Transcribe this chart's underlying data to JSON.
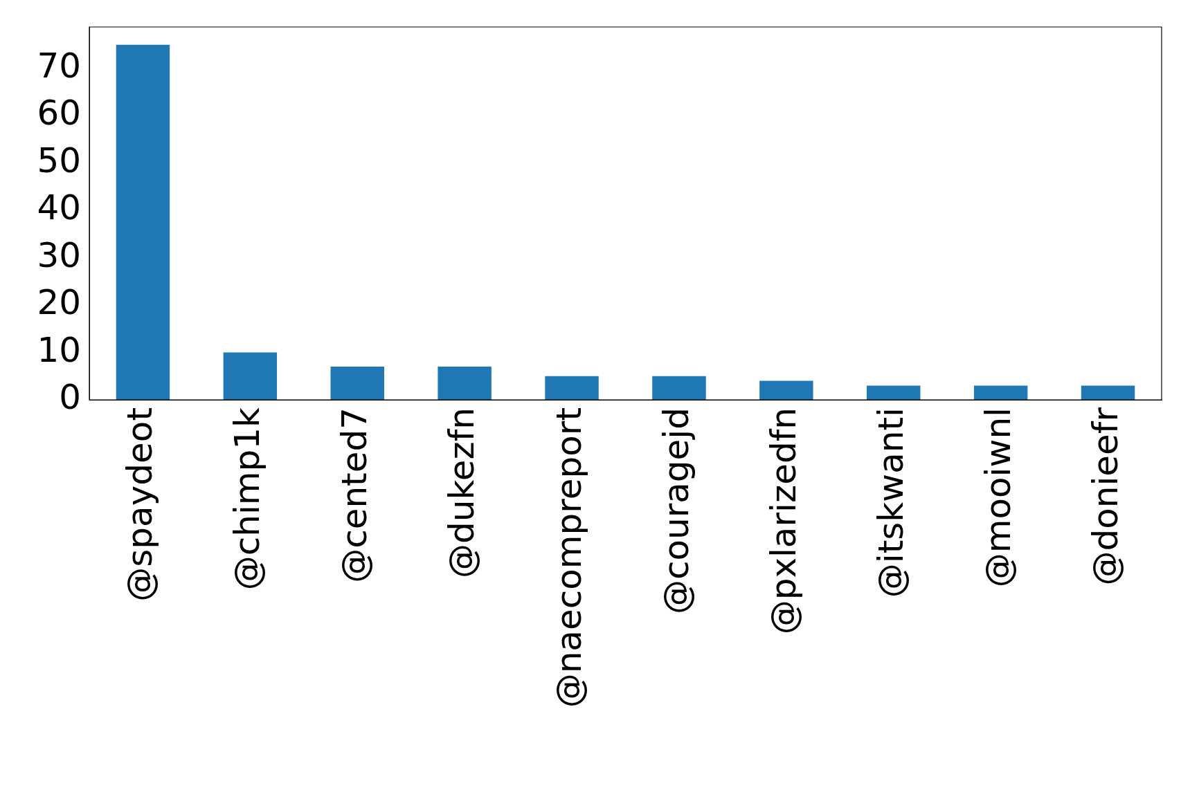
{
  "chart_data": {
    "type": "bar",
    "categories": [
      "@spaydeot",
      "@chimp1k",
      "@cented7",
      "@dukezfn",
      "@naecompreport",
      "@couragejd",
      "@pxlarizedfn",
      "@itskwanti",
      "@mooiwnl",
      "@donieefr"
    ],
    "values": [
      75,
      10,
      7,
      7,
      5,
      5,
      4,
      3,
      3,
      3
    ],
    "color": "#1f77b4",
    "ylim": [
      0,
      78.75
    ],
    "yticks": [
      0,
      10,
      20,
      30,
      40,
      50,
      60,
      70
    ],
    "grid": false,
    "legend": false
  }
}
